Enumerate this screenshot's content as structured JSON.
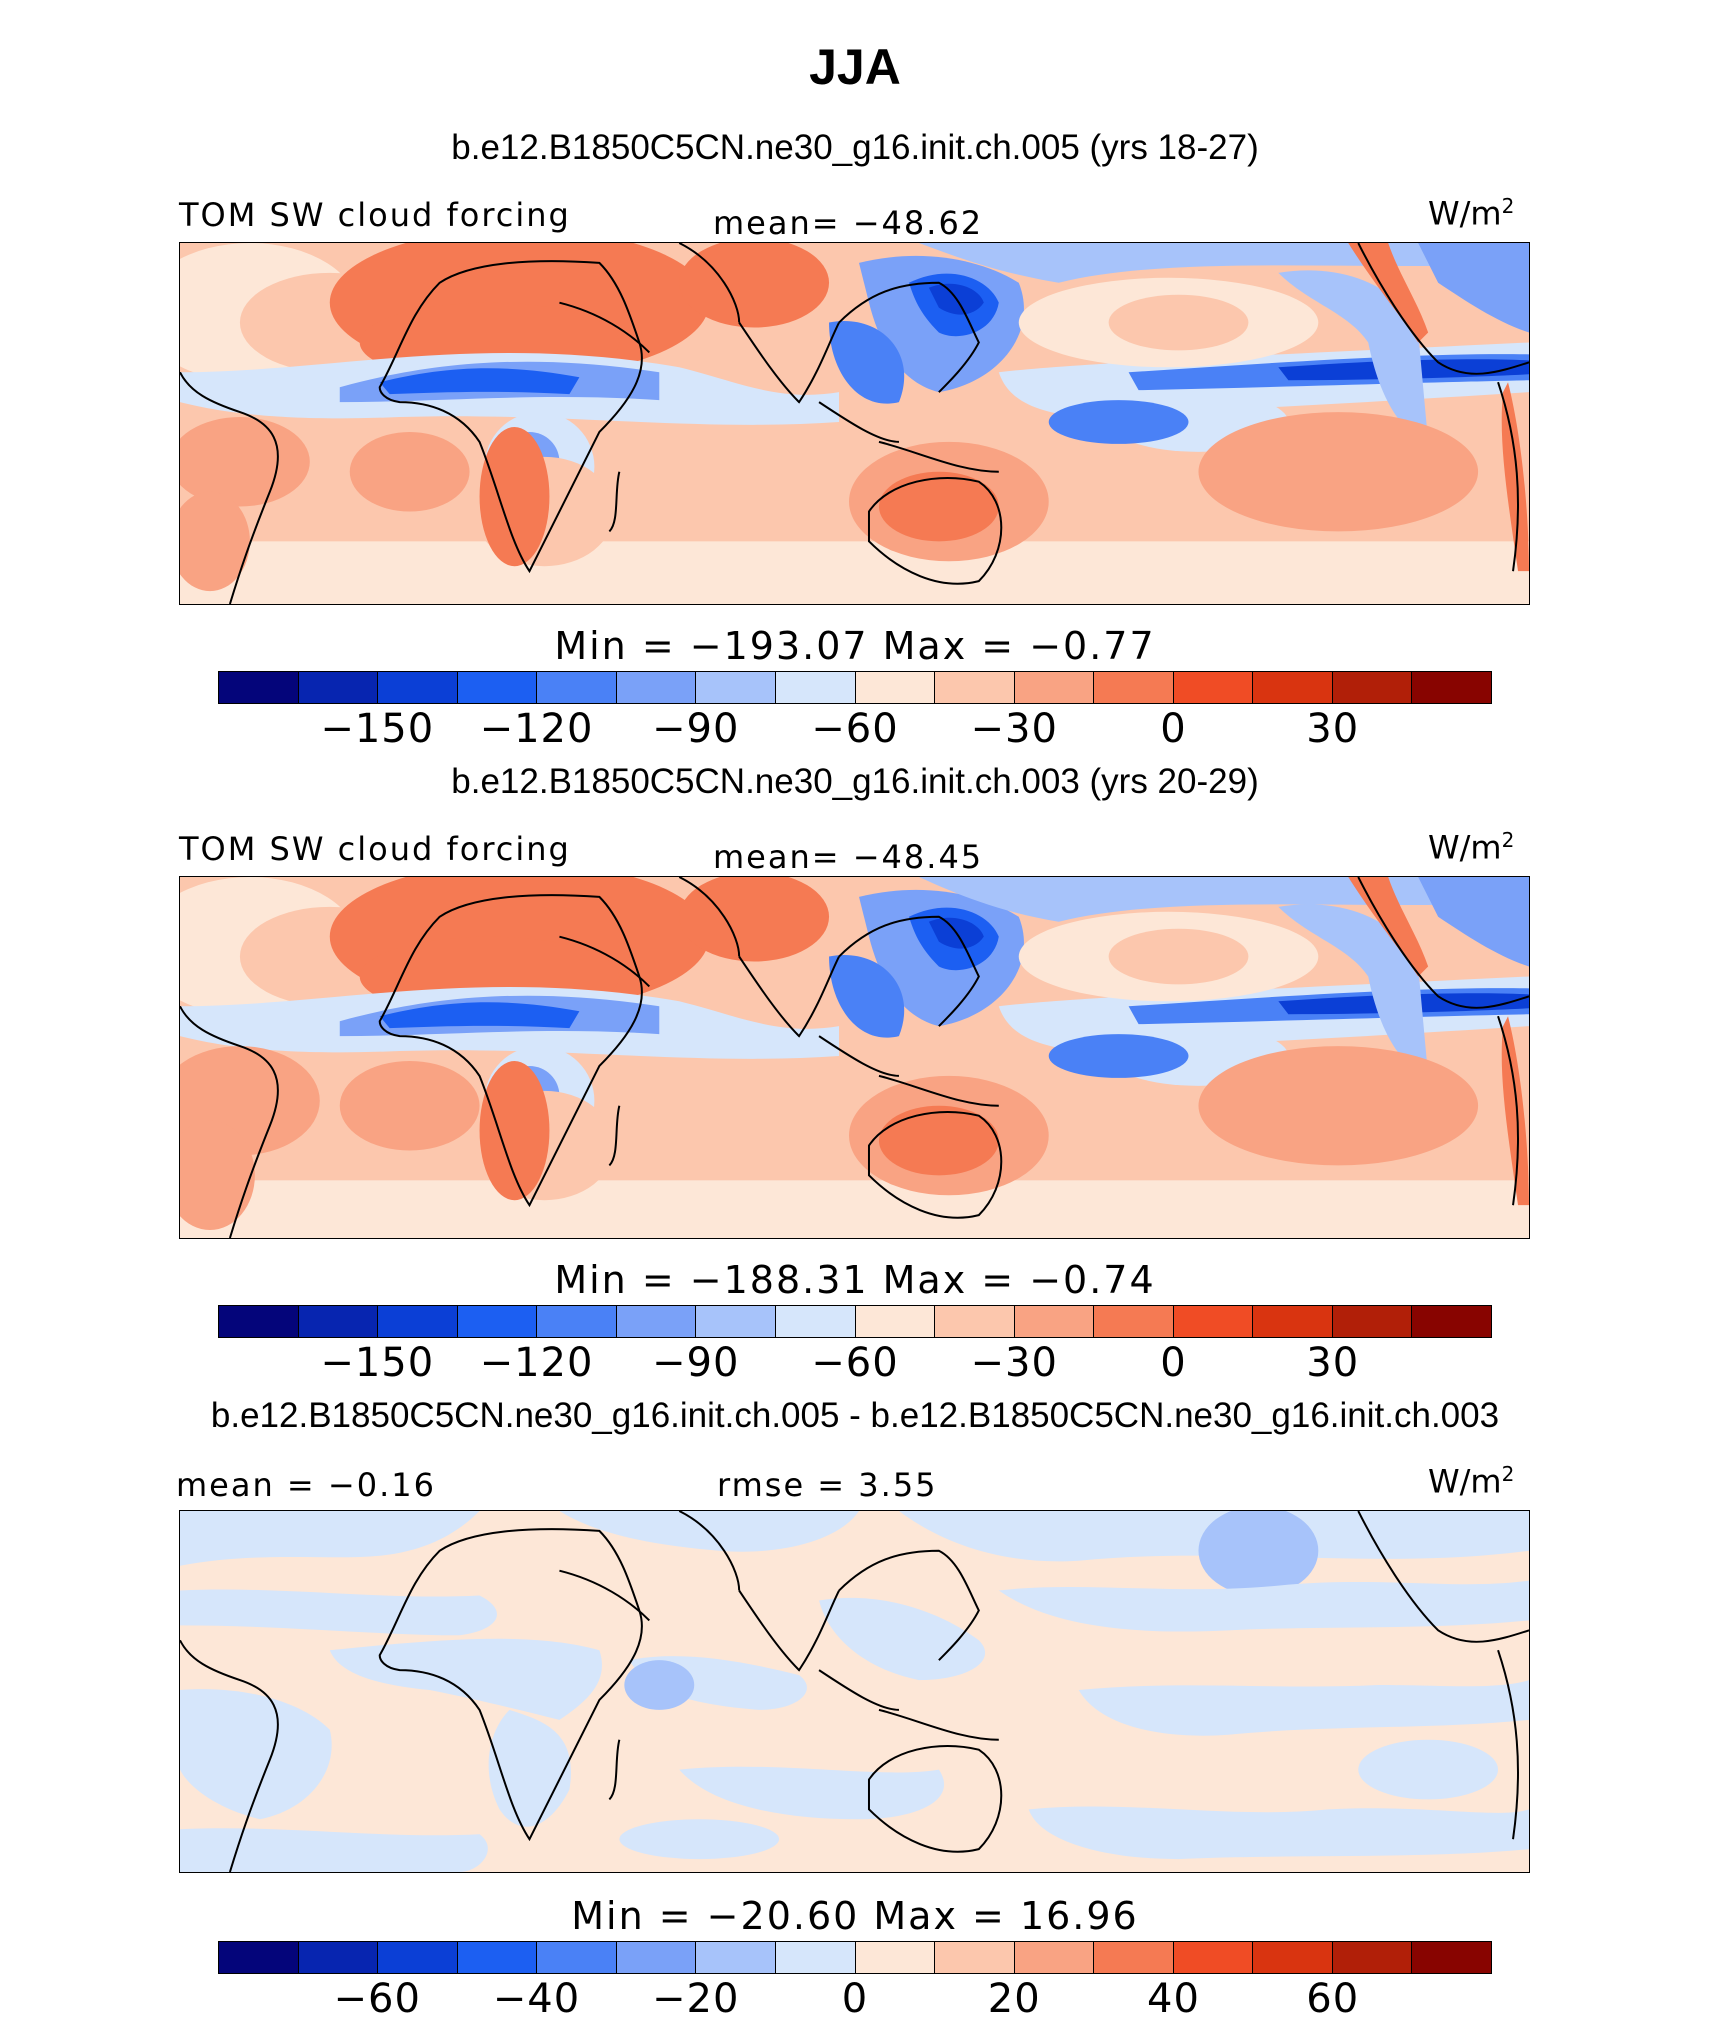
{
  "season_title": "JJA",
  "colors": [
    "#04057a",
    "#0725b0",
    "#0b3fd6",
    "#1c5ff2",
    "#4a81f6",
    "#7aa1f8",
    "#a7c3fa",
    "#d6e6fb",
    "#fde7d7",
    "#fcc7ad",
    "#f9a383",
    "#f57a53",
    "#f04c25",
    "#d93410",
    "#b11f08",
    "#880400"
  ],
  "panels": [
    {
      "case_title": "b.e12.B1850C5CN.ne30_g16.init.ch.005 (yrs 18-27)",
      "left_label": "TOM SW cloud forcing",
      "center_label": "mean= −48.62",
      "units": "W/m",
      "units_sup": "2",
      "minmax": "Min = −193.07 Max = −0.77",
      "ticks": [
        "−150",
        "−120",
        "−90",
        "−60",
        "−30",
        "0",
        "30"
      ]
    },
    {
      "case_title": "b.e12.B1850C5CN.ne30_g16.init.ch.003 (yrs 20-29)",
      "left_label": "TOM SW cloud forcing",
      "center_label": "mean= −48.45",
      "units": "W/m",
      "units_sup": "2",
      "minmax": "Min = −188.31 Max = −0.74",
      "ticks": [
        "−150",
        "−120",
        "−90",
        "−60",
        "−30",
        "0",
        "30"
      ]
    },
    {
      "case_title": "b.e12.B1850C5CN.ne30_g16.init.ch.005 - b.e12.B1850C5CN.ne30_g16.init.ch.003",
      "left_label": "mean = −0.16",
      "center_label": "rmse = 3.55",
      "units": "W/m",
      "units_sup": "2",
      "minmax": "Min = −20.60 Max = 16.96",
      "ticks": [
        "−60",
        "−40",
        "−20",
        "0",
        "20",
        "40",
        "60"
      ]
    }
  ]
}
